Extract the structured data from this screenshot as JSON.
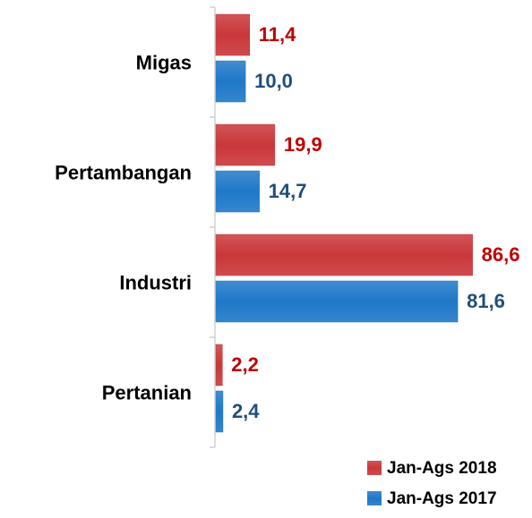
{
  "chart_data": {
    "type": "hbar",
    "categories": [
      "Migas",
      "Pertambangan",
      "Industri",
      "Pertanian"
    ],
    "series": [
      {
        "name": "Jan-Ags 2018",
        "color": "#c9373a",
        "values": [
          11.4,
          19.9,
          86.6,
          2.2
        ],
        "value_labels": [
          "11,4",
          "19,9",
          "86,6",
          "2,2"
        ]
      },
      {
        "name": "Jan-Ags 2017",
        "color": "#1f78c8",
        "values": [
          10.0,
          14.7,
          81.6,
          2.4
        ],
        "value_labels": [
          "10,0",
          "14,7",
          "81,6",
          "2,4"
        ]
      }
    ]
  }
}
